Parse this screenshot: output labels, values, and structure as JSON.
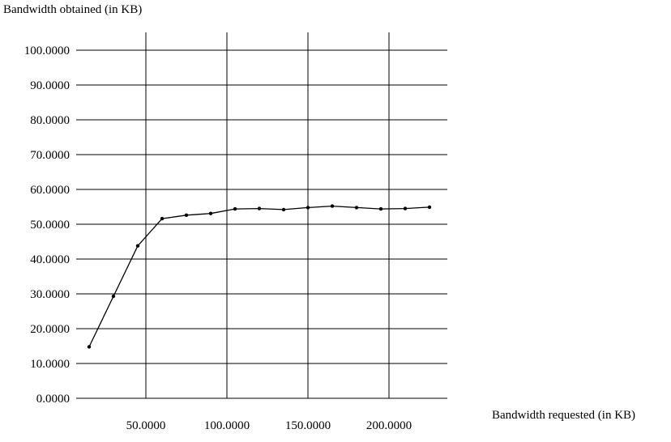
{
  "chart_data": {
    "type": "line",
    "xlabel": "Bandwidth requested (in KB)",
    "ylabel": "Bandwidth obtained (in KB)",
    "xlim": [
      0,
      235
    ],
    "ylim": [
      0,
      100
    ],
    "x_ticks": [
      50,
      100,
      150,
      200
    ],
    "x_tick_labels": [
      "50.0000",
      "100.0000",
      "150.0000",
      "200.0000"
    ],
    "y_ticks": [
      0,
      10,
      20,
      30,
      40,
      50,
      60,
      70,
      80,
      90,
      100
    ],
    "y_tick_labels": [
      "0.0000",
      "10.0000",
      "20.0000",
      "30.0000",
      "40.0000",
      "50.0000",
      "60.0000",
      "70.0000",
      "80.0000",
      "90.0000",
      "100.0000"
    ],
    "grid": true,
    "series": [
      {
        "x": [
          15,
          30,
          45,
          60,
          75,
          90,
          105,
          120,
          135,
          150,
          165,
          180,
          195,
          210,
          225
        ],
        "values": [
          14.8,
          29.3,
          43.8,
          51.6,
          52.6,
          53.1,
          54.4,
          54.5,
          54.2,
          54.8,
          55.2,
          54.8,
          54.4,
          54.5,
          54.9
        ]
      }
    ]
  }
}
